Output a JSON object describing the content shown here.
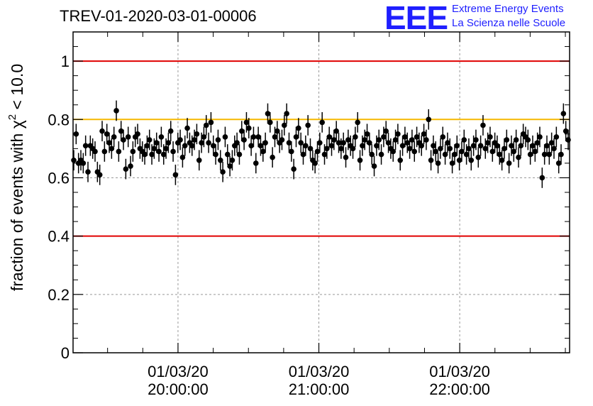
{
  "header": {
    "run_title": "TREV-01-2020-03-01-00006"
  },
  "logo": {
    "mark": "EEE",
    "line1": "Extreme Energy Events",
    "line2": "La Scienza nelle Scuole",
    "color": "#1f1fff"
  },
  "chart_data": {
    "type": "scatter",
    "title": "TREV-01-2020-03-01-00006",
    "ylabel": "fraction of events with χ² < 10.0",
    "ylabel_parts": {
      "prefix": "fraction of events with ",
      "symbol": "χ",
      "superscript": "2",
      "suffix": " < 10.0"
    },
    "ylim": [
      0,
      1.1
    ],
    "xlim_hours": [
      19.255,
      22.78
    ],
    "x_ticks": [
      {
        "hour": 20,
        "date": "01/03/20",
        "time": "20:00:00"
      },
      {
        "hour": 21,
        "date": "01/03/20",
        "time": "21:00:00"
      },
      {
        "hour": 22,
        "date": "01/03/20",
        "time": "22:00:00"
      }
    ],
    "y_ticks": [
      "0",
      "0.2",
      "0.4",
      "0.6",
      "0.8",
      "1"
    ],
    "y_tick_values": [
      0,
      0.2,
      0.4,
      0.6,
      0.8,
      1.0
    ],
    "grid": true,
    "reference_lines": [
      {
        "y": 1.0,
        "color": "#e00000"
      },
      {
        "y": 0.8,
        "color": "#f5b800"
      },
      {
        "y": 0.4,
        "color": "#e00000"
      }
    ],
    "error_bar_half_width": 0.035,
    "x_start_hour": 19.26,
    "x_end_hour": 22.77,
    "values": [
      0.66,
      0.75,
      0.65,
      0.66,
      0.65,
      0.71,
      0.62,
      0.71,
      0.7,
      0.69,
      0.62,
      0.61,
      0.76,
      0.69,
      0.75,
      0.72,
      0.7,
      0.74,
      0.83,
      0.69,
      0.76,
      0.73,
      0.63,
      0.74,
      0.64,
      0.69,
      0.74,
      0.75,
      0.7,
      0.69,
      0.68,
      0.71,
      0.73,
      0.68,
      0.7,
      0.72,
      0.69,
      0.74,
      0.68,
      0.7,
      0.72,
      0.76,
      0.69,
      0.61,
      0.72,
      0.73,
      0.67,
      0.71,
      0.77,
      0.72,
      0.71,
      0.73,
      0.75,
      0.66,
      0.72,
      0.74,
      0.78,
      0.72,
      0.79,
      0.71,
      0.68,
      0.73,
      0.66,
      0.62,
      0.74,
      0.68,
      0.64,
      0.66,
      0.71,
      0.72,
      0.68,
      0.76,
      0.73,
      0.79,
      0.77,
      0.71,
      0.74,
      0.65,
      0.74,
      0.71,
      0.69,
      0.72,
      0.82,
      0.79,
      0.67,
      0.74,
      0.76,
      0.72,
      0.73,
      0.78,
      0.82,
      0.72,
      0.69,
      0.63,
      0.74,
      0.77,
      0.72,
      0.68,
      0.71,
      0.78,
      0.7,
      0.66,
      0.65,
      0.69,
      0.72,
      0.79,
      0.68,
      0.7,
      0.74,
      0.71,
      0.73,
      0.76,
      0.72,
      0.7,
      0.72,
      0.67,
      0.73,
      0.71,
      0.7,
      0.74,
      0.79,
      0.66,
      0.71,
      0.73,
      0.75,
      0.72,
      0.68,
      0.64,
      0.71,
      0.73,
      0.68,
      0.74,
      0.76,
      0.72,
      0.7,
      0.69,
      0.73,
      0.75,
      0.66,
      0.71,
      0.74,
      0.72,
      0.7,
      0.73,
      0.69,
      0.74,
      0.72,
      0.71,
      0.75,
      0.73,
      0.8,
      0.66,
      0.71,
      0.69,
      0.65,
      0.7,
      0.74,
      0.68,
      0.72,
      0.7,
      0.65,
      0.68,
      0.71,
      0.66,
      0.69,
      0.73,
      0.68,
      0.7,
      0.66,
      0.71,
      0.73,
      0.67,
      0.71,
      0.78,
      0.7,
      0.72,
      0.74,
      0.69,
      0.72,
      0.71,
      0.68,
      0.66,
      0.7,
      0.73,
      0.65,
      0.71,
      0.69,
      0.73,
      0.67,
      0.71,
      0.75,
      0.74,
      0.73,
      0.68,
      0.71,
      0.69,
      0.72,
      0.74,
      0.6,
      0.68,
      0.71,
      0.68,
      0.72,
      0.7,
      0.74,
      0.65,
      0.68,
      0.82,
      0.76,
      0.73
    ]
  }
}
